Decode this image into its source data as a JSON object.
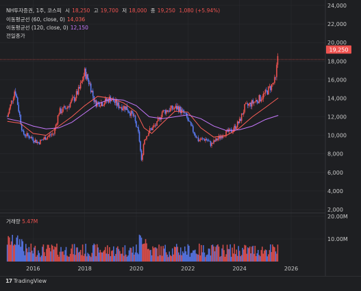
{
  "header": {
    "symbol": "NH투자증권, 1주, 코스피",
    "o_label": "시",
    "o_value": "18,250",
    "h_label": "고",
    "h_value": "19,700",
    "l_label": "저",
    "l_value": "18,000",
    "c_label": "종",
    "c_value": "19,250",
    "change": "1,080 (+5.94%)",
    "ma60_label": "이동평균선 (60, close, 0)",
    "ma60_value": "14,036",
    "ma120_label": "이동평균선 (120, close, 0)",
    "ma120_value": "12,150",
    "prev_close_label": "전일종가"
  },
  "volume_panel": {
    "label": "거래량",
    "value": "5.47M"
  },
  "price_badge": "19,250",
  "brand": "TradingView",
  "colors": {
    "up": "#ef5350",
    "down": "#5b7cf6",
    "ma60": "#ff5f58",
    "ma120": "#c879ff",
    "bg": "#1e1f22"
  },
  "chart_data": {
    "type": "line",
    "title": "",
    "ylim": [
      2000,
      24000
    ],
    "y_ticks": [
      "24,000",
      "22,000",
      "20,000",
      "18,000",
      "16,000",
      "14,000",
      "12,000",
      "10,000",
      "8,000",
      "6,000",
      "4,000",
      "2,000"
    ],
    "x_ticks": [
      "2016",
      "2018",
      "2020",
      "2022",
      "2024",
      "2026"
    ],
    "volume_ticks": [
      "20.00M",
      "10.00M"
    ],
    "volume_ylim": [
      0,
      20
    ],
    "series": [
      {
        "name": "종가",
        "x": [
          2015.0,
          2015.3,
          2015.6,
          2015.9,
          2016.2,
          2016.5,
          2016.8,
          2017.0,
          2017.3,
          2017.6,
          2017.8,
          2018.0,
          2018.2,
          2018.4,
          2018.7,
          2019.0,
          2019.3,
          2019.6,
          2019.9,
          2020.1,
          2020.2,
          2020.3,
          2020.5,
          2020.8,
          2021.0,
          2021.3,
          2021.6,
          2021.9,
          2022.1,
          2022.4,
          2022.7,
          2022.9,
          2023.1,
          2023.4,
          2023.7,
          2024.0,
          2024.2,
          2024.5,
          2024.8,
          2025.0,
          2025.2,
          2025.4,
          2025.5
        ],
        "y": [
          12000,
          15000,
          10200,
          9800,
          9200,
          9800,
          10200,
          12500,
          13000,
          14000,
          15000,
          16800,
          15500,
          13500,
          13500,
          14000,
          13200,
          13000,
          12000,
          10000,
          7200,
          9500,
          10500,
          11200,
          12500,
          12800,
          13000,
          12200,
          11000,
          9500,
          9600,
          9000,
          9500,
          10200,
          10500,
          11500,
          13000,
          13500,
          14000,
          14500,
          15200,
          16000,
          19250
        ]
      },
      {
        "name": "이동평균선 (60, close, 0)",
        "x": [
          2015.0,
          2015.5,
          2016.0,
          2016.5,
          2017.0,
          2017.5,
          2018.0,
          2018.5,
          2019.0,
          2019.5,
          2020.0,
          2020.3,
          2020.6,
          2021.0,
          2021.5,
          2022.0,
          2022.5,
          2023.0,
          2023.5,
          2024.0,
          2024.5,
          2025.0,
          2025.5
        ],
        "y": [
          11500,
          11300,
          10200,
          10000,
          11000,
          12000,
          13200,
          14200,
          14000,
          13500,
          12500,
          10800,
          10200,
          11300,
          12600,
          12500,
          10800,
          9800,
          10000,
          10800,
          12000,
          13000,
          14036
        ]
      },
      {
        "name": "이동평균선 (120, close, 0)",
        "x": [
          2015.0,
          2015.5,
          2016.0,
          2016.5,
          2017.0,
          2017.5,
          2018.0,
          2018.5,
          2019.0,
          2019.5,
          2020.0,
          2020.5,
          2021.0,
          2021.5,
          2022.0,
          2022.5,
          2023.0,
          2023.5,
          2024.0,
          2024.5,
          2025.0,
          2025.5
        ],
        "y": [
          11800,
          11500,
          11000,
          10700,
          10800,
          11400,
          12400,
          13400,
          13900,
          13800,
          13200,
          12000,
          11800,
          12000,
          12200,
          11800,
          11000,
          10500,
          10600,
          11000,
          11700,
          12150
        ]
      }
    ],
    "prev_close": 18170,
    "volume_max_recent": 5.47
  }
}
